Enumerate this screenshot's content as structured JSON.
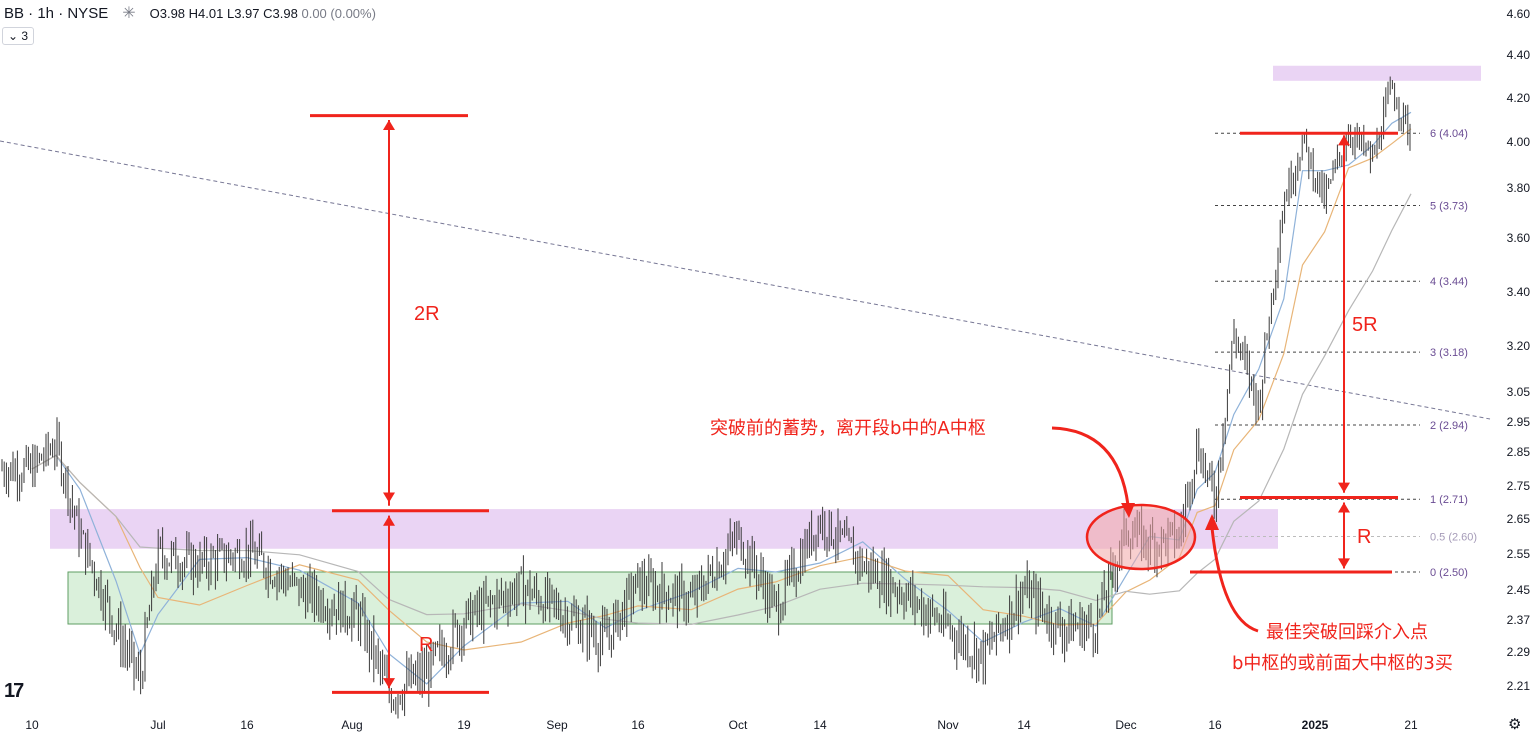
{
  "header": {
    "symbol": "BB · 1h · NYSE",
    "ohlc": {
      "o": "O3.98",
      "h": "H4.01",
      "l": "L3.97",
      "c": "C3.98",
      "chg": "0.00 (0.00%)"
    },
    "indicator_count": "3"
  },
  "colors": {
    "candle": "#3a3a3a",
    "ma_fast": "#8fb2d9",
    "ma_mid": "#e8b578",
    "ma_slow": "#b7b7b7",
    "annotation": "#f0241c",
    "fib_text": "#6a4c93",
    "purple_zone": "#e6ccf2",
    "green_zone": "#cdebcf",
    "trend": "#55557a"
  },
  "chart_data": {
    "type": "line",
    "title": "",
    "xlabel": "",
    "ylabel": "",
    "ylim": [
      2.16,
      4.65
    ],
    "price_ticks": [
      "4.60",
      "4.40",
      "4.20",
      "4.00",
      "3.80",
      "3.60",
      "3.40",
      "3.20",
      "3.05",
      "2.95",
      "2.85",
      "2.75",
      "2.65",
      "2.55",
      "2.45",
      "2.37",
      "2.29",
      "2.21"
    ],
    "time_ticks": [
      "10",
      "Jul",
      "16",
      "Aug",
      "19",
      "Sep",
      "16",
      "Oct",
      "14",
      "Nov",
      "14",
      "Dec",
      "16",
      "2025",
      "21"
    ],
    "series": [
      {
        "x": [
          "Jun 10",
          "Jun 14",
          "Jun 18",
          "Jun 24",
          "Jun 28",
          "Jul 1",
          "Jul 8",
          "Jul 16",
          "Jul 24",
          "Aug 2",
          "Aug 7",
          "Aug 13",
          "Aug 19",
          "Aug 27",
          "Sep 3",
          "Sep 10",
          "Sep 16",
          "Sep 24",
          "Oct 1",
          "Oct 7",
          "Oct 14",
          "Oct 20",
          "Oct 26",
          "Nov 1",
          "Nov 7",
          "Nov 14",
          "Nov 20",
          "Nov 26",
          "Dec 1",
          "Dec 5",
          "Dec 10",
          "Dec 13",
          "Dec 16",
          "Dec 19",
          "Dec 23",
          "Dec 27",
          "Dec 30",
          "Jan 3",
          "Jan 8",
          "Jan 13",
          "Jan 17",
          "Jan 21"
        ],
        "values": [
          2.8,
          2.88,
          2.6,
          2.35,
          2.22,
          2.55,
          2.52,
          2.56,
          2.45,
          2.38,
          2.19,
          2.24,
          2.37,
          2.46,
          2.38,
          2.32,
          2.47,
          2.42,
          2.6,
          2.4,
          2.65,
          2.52,
          2.44,
          2.35,
          2.28,
          2.45,
          2.35,
          2.36,
          2.62,
          2.58,
          2.6,
          2.88,
          2.7,
          3.25,
          3.0,
          3.75,
          4.0,
          3.75,
          4.05,
          3.92,
          4.25,
          4.02
        ]
      }
    ],
    "fib_levels": [
      {
        "label": "6 (4.04)",
        "value": 4.04
      },
      {
        "label": "5 (3.73)",
        "value": 3.73
      },
      {
        "label": "4 (3.44)",
        "value": 3.44
      },
      {
        "label": "3 (3.18)",
        "value": 3.18
      },
      {
        "label": "2 (2.94)",
        "value": 2.94
      },
      {
        "label": "1 (2.71)",
        "value": 2.71
      },
      {
        "label": "0.5 (2.60)",
        "value": 2.6
      },
      {
        "label": "0 (2.50)",
        "value": 2.5
      }
    ],
    "zones": [
      {
        "name": "purple-zone-a",
        "top": 2.68,
        "bottom": 2.565
      },
      {
        "name": "green-zone",
        "top": 2.5,
        "bottom": 2.36
      },
      {
        "name": "purple-zone-top",
        "top": 4.35,
        "bottom": 4.28
      }
    ],
    "annotations": {
      "label_2r": "2R",
      "label_r_left": "R",
      "label_5r": "5R",
      "label_r_right": "R",
      "note_accumulation": "突破前的蓄势，离开段b中的A中枢",
      "note_best_entry": "最佳突破回踩介入点",
      "note_third_buy": "b中枢的或前面大中枢的3买"
    }
  }
}
